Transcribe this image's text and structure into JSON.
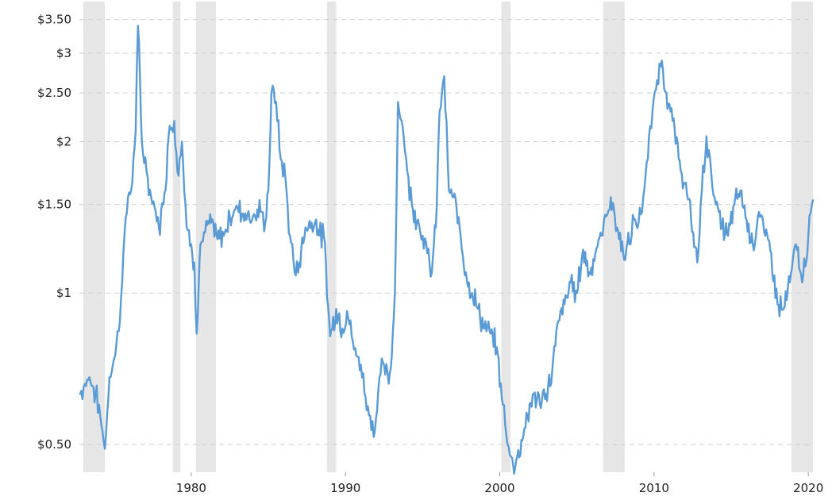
{
  "chart_data": {
    "type": "line",
    "y_scale": "log",
    "grid": "horizontal-dashed",
    "xlim": [
      1972.75,
      2020.3
    ],
    "ylim": [
      0.44,
      3.8
    ],
    "x_ticks": [
      {
        "value": 1980,
        "label": "1980"
      },
      {
        "value": 1990,
        "label": "1990"
      },
      {
        "value": 2000,
        "label": "2000"
      },
      {
        "value": 2010,
        "label": "2010"
      },
      {
        "value": 2020,
        "label": "2020"
      }
    ],
    "y_ticks": [
      {
        "value": 3.5,
        "label": "$3.50"
      },
      {
        "value": 3.0,
        "label": "$3"
      },
      {
        "value": 2.5,
        "label": "$2.50"
      },
      {
        "value": 2.0,
        "label": "$2"
      },
      {
        "value": 1.5,
        "label": "$1.50"
      },
      {
        "value": 1.0,
        "label": "$1"
      },
      {
        "value": 0.5,
        "label": "$0.50"
      }
    ],
    "shaded_periods": [
      {
        "start": 1973.0,
        "end": 1974.4
      },
      {
        "start": 1978.8,
        "end": 1979.3
      },
      {
        "start": 1980.3,
        "end": 1981.6
      },
      {
        "start": 1988.8,
        "end": 1989.4
      },
      {
        "start": 2000.1,
        "end": 2000.7
      },
      {
        "start": 2006.7,
        "end": 2008.1
      },
      {
        "start": 2018.9,
        "end": 2020.3
      }
    ],
    "series": [
      {
        "color": "#5b9bd5",
        "x": [
          1972.8,
          1973.1,
          1973.4,
          1973.8,
          1974.1,
          1974.4,
          1974.7,
          1975.0,
          1975.3,
          1975.6,
          1975.9,
          1976.1,
          1976.4,
          1976.55,
          1976.8,
          1977.1,
          1977.4,
          1977.7,
          1977.9,
          1978.2,
          1978.6,
          1978.9,
          1979.1,
          1979.4,
          1979.7,
          1980.0,
          1980.2,
          1980.35,
          1980.6,
          1980.9,
          1981.3,
          1981.7,
          1982.1,
          1982.5,
          1983.0,
          1983.5,
          1984.0,
          1984.5,
          1984.8,
          1985.0,
          1985.2,
          1985.5,
          1985.8,
          1986.1,
          1986.4,
          1986.7,
          1987.0,
          1987.4,
          1987.8,
          1988.1,
          1988.3,
          1988.6,
          1989.0,
          1989.4,
          1989.8,
          1990.1,
          1990.4,
          1990.7,
          1991.0,
          1991.3,
          1991.6,
          1991.9,
          1992.2,
          1992.5,
          1992.8,
          1993.0,
          1993.2,
          1993.4,
          1993.7,
          1994.0,
          1994.3,
          1994.7,
          1995.0,
          1995.3,
          1995.6,
          1995.85,
          1996.1,
          1996.4,
          1996.7,
          1997.0,
          1997.4,
          1997.8,
          1998.2,
          1998.6,
          1999.0,
          1999.4,
          1999.8,
          2000.2,
          2000.5,
          2000.8,
          2001.0,
          2001.4,
          2001.8,
          2002.2,
          2002.6,
          2003.0,
          2003.4,
          2003.8,
          2004.2,
          2004.6,
          2005.0,
          2005.4,
          2005.8,
          2006.2,
          2006.6,
          2006.9,
          2007.2,
          2007.6,
          2008.0,
          2008.4,
          2008.7,
          2009.0,
          2009.3,
          2009.6,
          2009.9,
          2010.2,
          2010.5,
          2010.8,
          2011.2,
          2011.6,
          2012.0,
          2012.4,
          2012.8,
          2013.1,
          2013.4,
          2013.7,
          2014.0,
          2014.4,
          2014.8,
          2015.2,
          2015.6,
          2016.0,
          2016.4,
          2016.8,
          2017.2,
          2017.6,
          2018.0,
          2018.4,
          2018.8,
          2019.2,
          2019.6,
          2020.0,
          2020.3
        ],
        "values": [
          0.63,
          0.66,
          0.68,
          0.63,
          0.57,
          0.49,
          0.68,
          0.74,
          0.84,
          1.2,
          1.55,
          1.6,
          2.1,
          3.4,
          2.0,
          1.75,
          1.55,
          1.45,
          1.35,
          1.5,
          2.15,
          2.2,
          1.75,
          2.0,
          1.35,
          1.25,
          1.15,
          0.83,
          1.25,
          1.32,
          1.38,
          1.28,
          1.3,
          1.42,
          1.48,
          1.44,
          1.42,
          1.45,
          1.38,
          1.6,
          2.5,
          2.4,
          1.85,
          1.7,
          1.3,
          1.1,
          1.15,
          1.35,
          1.38,
          1.4,
          1.3,
          1.3,
          0.82,
          0.93,
          0.85,
          0.92,
          0.82,
          0.75,
          0.72,
          0.62,
          0.57,
          0.53,
          0.68,
          0.72,
          0.66,
          0.75,
          1.0,
          2.4,
          2.15,
          1.75,
          1.5,
          1.4,
          1.3,
          1.2,
          1.1,
          1.35,
          2.3,
          2.7,
          1.6,
          1.55,
          1.35,
          1.1,
          1.0,
          0.93,
          0.85,
          0.83,
          0.78,
          0.6,
          0.5,
          0.47,
          0.45,
          0.51,
          0.57,
          0.63,
          0.6,
          0.63,
          0.7,
          0.88,
          0.95,
          1.05,
          1.0,
          1.22,
          1.1,
          1.2,
          1.3,
          1.42,
          1.55,
          1.35,
          1.2,
          1.25,
          1.4,
          1.38,
          1.55,
          1.85,
          2.3,
          2.65,
          2.9,
          2.5,
          2.2,
          1.85,
          1.65,
          1.4,
          1.15,
          1.6,
          2.05,
          1.75,
          1.5,
          1.35,
          1.3,
          1.5,
          1.6,
          1.4,
          1.25,
          1.45,
          1.3,
          1.2,
          0.95,
          0.93,
          1.05,
          1.25,
          1.05,
          1.3,
          1.53
        ]
      }
    ]
  }
}
